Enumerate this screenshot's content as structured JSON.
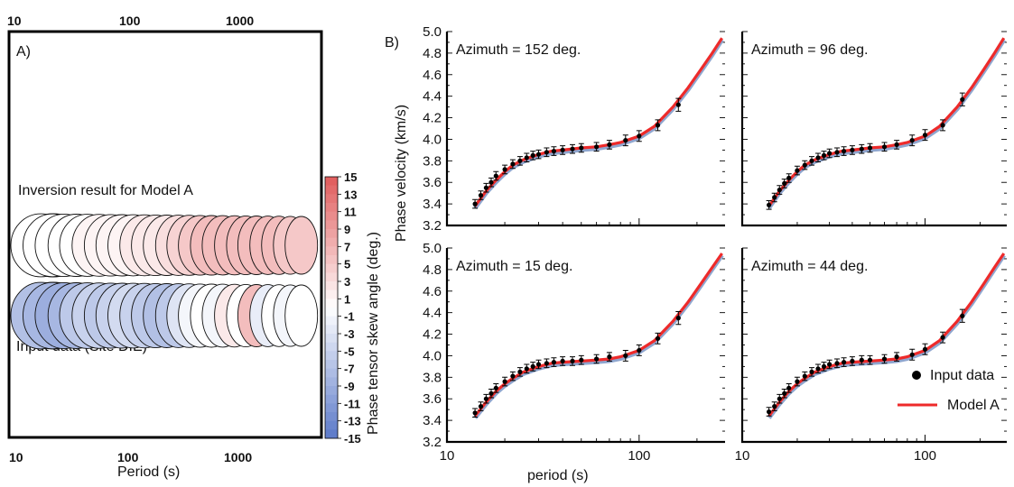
{
  "colors": {
    "positive": "#e05a5a",
    "negative": "#5a78c8",
    "model_line": "#ee2a2a",
    "model_under": "#8fa6cf",
    "points": "#000000",
    "frame": "#000000"
  },
  "panel_a": {
    "label": "A)",
    "xlabel": "Period (s)",
    "top_ticks": [
      "10",
      "100",
      "1000"
    ],
    "bottom_ticks": [
      "10",
      "100",
      "1000"
    ],
    "row1_label": "Inversion result for Model A",
    "row2_label": "Input data (Site DIE)",
    "colorbar": {
      "label": "Phase tensor skew angle (deg.)",
      "ticks": [
        "15",
        "13",
        "11",
        "9",
        "7",
        "5",
        "3",
        "1",
        "-1",
        "-3",
        "-5",
        "-7",
        "-9",
        "-11",
        "-13",
        "-15"
      ],
      "range": [
        -15,
        15
      ]
    }
  },
  "panel_b": {
    "label": "B)",
    "ylabel": "Phase velocity (km/s)",
    "xlabel": "period (s)",
    "x_ticks": [
      "10",
      "100"
    ],
    "y_ticks": [
      "5.0",
      "4.8",
      "4.6",
      "4.4",
      "4.2",
      "4.0",
      "3.8",
      "3.6",
      "3.4",
      "3.2"
    ],
    "legend": {
      "input": "Input data",
      "model": "Model A"
    },
    "subplots": [
      {
        "title": "Azimuth = 152 deg."
      },
      {
        "title": "Azimuth = 96 deg."
      },
      {
        "title": "Azimuth = 15 deg."
      },
      {
        "title": "Azimuth = 44 deg."
      }
    ]
  },
  "chart_data": [
    {
      "type": "scatter",
      "title": "A)",
      "xlabel": "Period (s)",
      "x_scale": "log",
      "xlim": [
        10,
        4500
      ],
      "series": [
        {
          "name": "Inversion result for Model A",
          "x": [
            11,
            14,
            18,
            23,
            30,
            38,
            49,
            63,
            80,
            102,
            130,
            165,
            210,
            270,
            340,
            430,
            550,
            700,
            900,
            1150,
            1450,
            1850,
            2350,
            3000,
            3800
          ],
          "skew": [
            0,
            0,
            0,
            0,
            0,
            0,
            1,
            1,
            1,
            1,
            2,
            2,
            2,
            3,
            4,
            5,
            6,
            6,
            6,
            6,
            6,
            6,
            6,
            5,
            5
          ]
        },
        {
          "name": "Input data (Site DIE)",
          "x": [
            11,
            14,
            18,
            23,
            30,
            38,
            49,
            63,
            80,
            102,
            130,
            165,
            210,
            270,
            340,
            430,
            550,
            700,
            900,
            1150,
            1450,
            1850,
            2350,
            3000,
            3800
          ],
          "skew": [
            -7,
            -7,
            -8,
            -9,
            -8,
            -6,
            -5,
            -6,
            -5,
            -4,
            -5,
            -6,
            -7,
            -6,
            -3,
            -1,
            0,
            -1,
            2,
            0,
            6,
            -2,
            0,
            -1,
            0
          ]
        }
      ],
      "colorbar_range": [
        -15,
        15
      ]
    },
    {
      "type": "scatter",
      "title": "Azimuth = 152 deg.",
      "xlabel": "period (s)",
      "ylabel": "Phase velocity (km/s)",
      "x_scale": "log",
      "xlim": [
        10,
        280
      ],
      "ylim": [
        3.2,
        5.0
      ],
      "series": [
        {
          "name": "Input data",
          "x": [
            14,
            15,
            16,
            17,
            18,
            20,
            22,
            24,
            26,
            28,
            30,
            33,
            36,
            40,
            45,
            50,
            60,
            70,
            85,
            100,
            125,
            160
          ],
          "y": [
            3.4,
            3.48,
            3.55,
            3.6,
            3.66,
            3.72,
            3.77,
            3.8,
            3.83,
            3.85,
            3.86,
            3.88,
            3.89,
            3.9,
            3.91,
            3.92,
            3.93,
            3.95,
            3.99,
            4.03,
            4.13,
            4.32
          ],
          "err": [
            0.04,
            0.04,
            0.04,
            0.04,
            0.04,
            0.04,
            0.04,
            0.04,
            0.04,
            0.04,
            0.04,
            0.04,
            0.04,
            0.04,
            0.04,
            0.04,
            0.04,
            0.04,
            0.05,
            0.05,
            0.05,
            0.06
          ]
        },
        {
          "name": "Model A",
          "x": [
            14,
            16,
            18,
            20,
            22,
            25,
            30,
            35,
            40,
            50,
            60,
            70,
            80,
            100,
            120,
            150,
            180,
            210,
            240,
            270
          ],
          "y": [
            3.38,
            3.52,
            3.62,
            3.7,
            3.76,
            3.81,
            3.86,
            3.89,
            3.9,
            3.92,
            3.93,
            3.95,
            3.97,
            4.03,
            4.12,
            4.3,
            4.48,
            4.65,
            4.8,
            4.94
          ]
        }
      ]
    },
    {
      "type": "scatter",
      "title": "Azimuth = 96 deg.",
      "xlabel": "period (s)",
      "x_scale": "log",
      "xlim": [
        10,
        280
      ],
      "ylim": [
        3.2,
        5.0
      ],
      "series": [
        {
          "name": "Input data",
          "x": [
            14,
            15,
            16,
            17,
            18,
            20,
            22,
            24,
            26,
            28,
            30,
            33,
            36,
            40,
            45,
            50,
            60,
            70,
            85,
            100,
            125,
            160
          ],
          "y": [
            3.39,
            3.46,
            3.53,
            3.59,
            3.64,
            3.71,
            3.76,
            3.8,
            3.83,
            3.85,
            3.87,
            3.88,
            3.89,
            3.9,
            3.91,
            3.92,
            3.93,
            3.95,
            3.99,
            4.04,
            4.13,
            4.37
          ],
          "err": [
            0.04,
            0.04,
            0.04,
            0.04,
            0.04,
            0.04,
            0.04,
            0.04,
            0.04,
            0.04,
            0.04,
            0.04,
            0.04,
            0.04,
            0.04,
            0.04,
            0.04,
            0.04,
            0.05,
            0.05,
            0.05,
            0.06
          ]
        },
        {
          "name": "Model A",
          "x": [
            14,
            16,
            18,
            20,
            22,
            25,
            30,
            35,
            40,
            50,
            60,
            70,
            80,
            100,
            120,
            150,
            180,
            210,
            240,
            270
          ],
          "y": [
            3.38,
            3.52,
            3.62,
            3.7,
            3.76,
            3.81,
            3.86,
            3.89,
            3.9,
            3.92,
            3.93,
            3.95,
            3.97,
            4.03,
            4.12,
            4.3,
            4.48,
            4.65,
            4.8,
            4.94
          ]
        }
      ]
    },
    {
      "type": "scatter",
      "title": "Azimuth = 15 deg.",
      "xlabel": "period (s)",
      "ylabel": "Phase velocity (km/s)",
      "x_scale": "log",
      "xlim": [
        10,
        280
      ],
      "ylim": [
        3.2,
        5.0
      ],
      "series": [
        {
          "name": "Input data",
          "x": [
            14,
            15,
            16,
            17,
            18,
            20,
            22,
            24,
            26,
            28,
            30,
            33,
            36,
            40,
            45,
            50,
            60,
            70,
            85,
            100,
            125,
            160
          ],
          "y": [
            3.47,
            3.53,
            3.6,
            3.65,
            3.7,
            3.76,
            3.81,
            3.85,
            3.88,
            3.9,
            3.92,
            3.93,
            3.94,
            3.95,
            3.95,
            3.96,
            3.97,
            3.99,
            4.0,
            4.05,
            4.16,
            4.35
          ],
          "err": [
            0.04,
            0.04,
            0.04,
            0.04,
            0.04,
            0.04,
            0.04,
            0.04,
            0.04,
            0.04,
            0.04,
            0.04,
            0.04,
            0.04,
            0.04,
            0.04,
            0.04,
            0.04,
            0.05,
            0.05,
            0.05,
            0.06
          ]
        },
        {
          "name": "Model A",
          "x": [
            14,
            16,
            18,
            20,
            22,
            25,
            30,
            35,
            40,
            50,
            60,
            70,
            80,
            100,
            120,
            150,
            180,
            210,
            240,
            270
          ],
          "y": [
            3.44,
            3.57,
            3.67,
            3.74,
            3.79,
            3.85,
            3.9,
            3.93,
            3.94,
            3.95,
            3.96,
            3.97,
            3.99,
            4.05,
            4.14,
            4.32,
            4.5,
            4.67,
            4.82,
            4.95
          ]
        }
      ]
    },
    {
      "type": "scatter",
      "title": "Azimuth = 44 deg.",
      "xlabel": "period (s)",
      "x_scale": "log",
      "xlim": [
        10,
        280
      ],
      "ylim": [
        3.2,
        5.0
      ],
      "series": [
        {
          "name": "Input data",
          "x": [
            14,
            15,
            16,
            17,
            18,
            20,
            22,
            24,
            26,
            28,
            30,
            33,
            36,
            40,
            45,
            50,
            60,
            70,
            85,
            100,
            125,
            160
          ],
          "y": [
            3.48,
            3.53,
            3.6,
            3.65,
            3.7,
            3.76,
            3.81,
            3.85,
            3.88,
            3.9,
            3.92,
            3.93,
            3.94,
            3.95,
            3.96,
            3.96,
            3.97,
            3.99,
            4.01,
            4.06,
            4.17,
            4.37
          ],
          "err": [
            0.04,
            0.04,
            0.04,
            0.04,
            0.04,
            0.04,
            0.04,
            0.04,
            0.04,
            0.04,
            0.04,
            0.04,
            0.04,
            0.04,
            0.04,
            0.04,
            0.04,
            0.04,
            0.05,
            0.05,
            0.05,
            0.06
          ]
        },
        {
          "name": "Model A",
          "x": [
            14,
            16,
            18,
            20,
            22,
            25,
            30,
            35,
            40,
            50,
            60,
            70,
            80,
            100,
            120,
            150,
            180,
            210,
            240,
            270
          ],
          "y": [
            3.44,
            3.57,
            3.67,
            3.74,
            3.79,
            3.85,
            3.9,
            3.93,
            3.94,
            3.95,
            3.96,
            3.97,
            3.99,
            4.05,
            4.14,
            4.32,
            4.5,
            4.67,
            4.82,
            4.95
          ]
        }
      ]
    }
  ]
}
